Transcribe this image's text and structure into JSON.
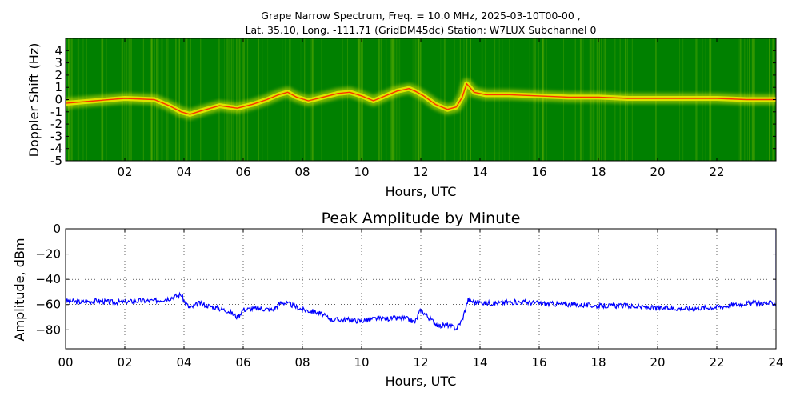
{
  "chart_data": [
    {
      "type": "heatmap",
      "title": "Grape Narrow Spectrum, Freq. = 10.0 MHz, 2025-03-10T00-00 ,",
      "subtitle": "Lat.  35.10, Long. -111.71 (GridDM45dc) Station: W7LUX Subchannel 0",
      "xlabel": "Hours, UTC",
      "ylabel": "Doppler Shift (Hz)",
      "xlim": [
        0,
        24
      ],
      "ylim": [
        -5,
        5
      ],
      "x_ticks": [
        2,
        4,
        6,
        8,
        10,
        12,
        14,
        16,
        18,
        20,
        22
      ],
      "x_tick_labels": [
        "02",
        "04",
        "06",
        "08",
        "10",
        "12",
        "14",
        "16",
        "18",
        "20",
        "22"
      ],
      "y_ticks": [
        4,
        3,
        2,
        1,
        0,
        -1,
        -2,
        -3,
        -4,
        -5
      ],
      "y_tick_labels": [
        "4",
        "3",
        "2",
        "1",
        "0",
        "-1",
        "-2",
        "-3",
        "-4",
        "-5"
      ],
      "colors": {
        "background": "#008000",
        "band": "#e8e800",
        "peak": "#ff2000"
      },
      "grid": false,
      "doppler_trace": {
        "x": [
          0,
          1,
          2,
          3,
          3.5,
          3.9,
          4.2,
          4.6,
          5.2,
          5.8,
          6.3,
          6.8,
          7.2,
          7.5,
          7.8,
          8.2,
          8.7,
          9.2,
          9.6,
          10.0,
          10.4,
          10.8,
          11.2,
          11.6,
          11.8,
          12.1,
          12.5,
          12.9,
          13.2,
          13.4,
          13.55,
          13.8,
          14.2,
          15,
          16,
          17,
          18,
          19,
          20,
          21,
          22,
          23,
          24
        ],
        "y": [
          -0.3,
          -0.1,
          0.1,
          0.0,
          -0.5,
          -1.0,
          -1.2,
          -0.9,
          -0.5,
          -0.7,
          -0.4,
          0.0,
          0.4,
          0.6,
          0.2,
          -0.1,
          0.2,
          0.5,
          0.6,
          0.3,
          -0.1,
          0.3,
          0.7,
          0.9,
          0.7,
          0.3,
          -0.4,
          -0.8,
          -0.6,
          0.2,
          1.3,
          0.6,
          0.4,
          0.4,
          0.3,
          0.2,
          0.2,
          0.1,
          0.1,
          0.1,
          0.1,
          0.0,
          0.0
        ]
      }
    },
    {
      "type": "line",
      "title": "Peak Amplitude by Minute",
      "xlabel": "Hours, UTC",
      "ylabel": "Amplitude, dBm",
      "xlim": [
        0,
        24
      ],
      "ylim": [
        -95,
        0
      ],
      "grid": true,
      "x_ticks": [
        0,
        2,
        4,
        6,
        8,
        10,
        12,
        14,
        16,
        18,
        20,
        22,
        24
      ],
      "x_tick_labels": [
        "00",
        "02",
        "04",
        "06",
        "08",
        "10",
        "12",
        "14",
        "16",
        "18",
        "20",
        "22",
        "24"
      ],
      "y_ticks": [
        0,
        -20,
        -40,
        -60,
        -80
      ],
      "y_tick_labels": [
        "0",
        "−20",
        "−40",
        "−60",
        "−80"
      ],
      "series": [
        {
          "color": "#0000ff",
          "x": [
            0,
            0.5,
            1,
            1.5,
            2,
            2.5,
            3,
            3.5,
            3.9,
            4.0,
            4.2,
            4.5,
            5,
            5.5,
            5.8,
            6.0,
            6.5,
            7,
            7.3,
            7.6,
            8.0,
            8.5,
            9,
            9.5,
            10,
            10.5,
            11,
            11.5,
            11.8,
            12.0,
            12.3,
            12.6,
            12.9,
            13.2,
            13.4,
            13.6,
            13.8,
            14.5,
            15,
            15.5,
            16,
            17,
            18,
            19,
            20,
            21,
            22,
            23,
            24
          ],
          "values": [
            -57,
            -58,
            -57,
            -58,
            -58,
            -57,
            -57,
            -55,
            -52,
            -57,
            -63,
            -59,
            -62,
            -65,
            -70,
            -64,
            -63,
            -64,
            -58,
            -60,
            -64,
            -66,
            -72,
            -72,
            -73,
            -71,
            -71,
            -71,
            -74,
            -64,
            -71,
            -77,
            -76,
            -79,
            -72,
            -56,
            -58,
            -59,
            -58,
            -58,
            -59,
            -60,
            -61,
            -61,
            -63,
            -63,
            -62,
            -59,
            -59
          ]
        }
      ]
    }
  ]
}
